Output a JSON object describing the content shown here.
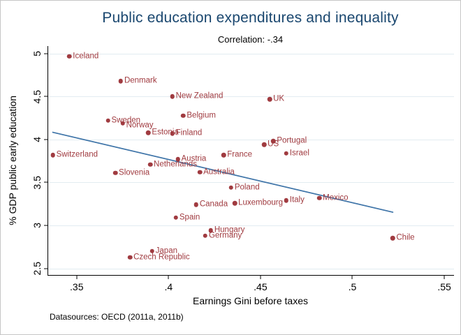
{
  "chart_data": {
    "type": "scatter",
    "title": "Public education expenditures and inequality",
    "subtitle": "Correlation: -.34",
    "xlabel": "Earnings Gini before taxes",
    "ylabel": "% GDP public early education",
    "note": "Datasources: OECD (2011a, 2011b)",
    "grid": true,
    "legend": "none",
    "x_view": [
      0.3345,
      0.5553
    ],
    "y_view": [
      2.423,
      5.089
    ],
    "xticks": [
      {
        "v": 0.35,
        "label": ".35"
      },
      {
        "v": 0.4,
        "label": ".4"
      },
      {
        "v": 0.45,
        "label": ".45"
      },
      {
        "v": 0.5,
        "label": ".5"
      },
      {
        "v": 0.55,
        "label": ".55"
      }
    ],
    "yticks": [
      {
        "v": 2.5,
        "label": "2.5"
      },
      {
        "v": 3.0,
        "label": "3"
      },
      {
        "v": 3.5,
        "label": "3.5"
      },
      {
        "v": 4.0,
        "label": "4"
      },
      {
        "v": 4.5,
        "label": "4.5"
      },
      {
        "v": 5.0,
        "label": "5"
      }
    ],
    "trend_line": {
      "x": [
        0.337,
        0.522
      ],
      "y": [
        4.085,
        3.154
      ]
    },
    "points": [
      {
        "label": "Iceland",
        "x": 0.346,
        "y": 4.97
      },
      {
        "label": "Denmark",
        "x": 0.374,
        "y": 4.68
      },
      {
        "label": "New Zealand",
        "x": 0.402,
        "y": 4.5
      },
      {
        "label": "UK",
        "x": 0.455,
        "y": 4.47
      },
      {
        "label": "Belgium",
        "x": 0.408,
        "y": 4.28
      },
      {
        "label": "Sweden",
        "x": 0.367,
        "y": 4.22
      },
      {
        "label": "Norway",
        "x": 0.375,
        "y": 4.19,
        "label_dy": 3
      },
      {
        "label": "Estonia",
        "x": 0.389,
        "y": 4.08
      },
      {
        "label": "Finland",
        "x": 0.402,
        "y": 4.07
      },
      {
        "label": "Portugal",
        "x": 0.457,
        "y": 3.98
      },
      {
        "label": "US",
        "x": 0.452,
        "y": 3.94
      },
      {
        "label": "Israel",
        "x": 0.464,
        "y": 3.84
      },
      {
        "label": "France",
        "x": 0.43,
        "y": 3.82
      },
      {
        "label": "Switzerland",
        "x": 0.337,
        "y": 3.82
      },
      {
        "label": "Austria",
        "x": 0.405,
        "y": 3.77
      },
      {
        "label": "Netherlands",
        "x": 0.39,
        "y": 3.71
      },
      {
        "label": "Australia",
        "x": 0.417,
        "y": 3.62
      },
      {
        "label": "Slovenia",
        "x": 0.371,
        "y": 3.61
      },
      {
        "label": "Poland",
        "x": 0.434,
        "y": 3.44
      },
      {
        "label": "Mexico",
        "x": 0.482,
        "y": 3.32
      },
      {
        "label": "Italy",
        "x": 0.464,
        "y": 3.29
      },
      {
        "label": "Luxembourg",
        "x": 0.436,
        "y": 3.26
      },
      {
        "label": "Canada",
        "x": 0.415,
        "y": 3.24
      },
      {
        "label": "Spain",
        "x": 0.404,
        "y": 3.09
      },
      {
        "label": "Hungary",
        "x": 0.423,
        "y": 2.94
      },
      {
        "label": "Germany",
        "x": 0.42,
        "y": 2.88
      },
      {
        "label": "Chile",
        "x": 0.522,
        "y": 2.85
      },
      {
        "label": "Japan",
        "x": 0.391,
        "y": 2.7
      },
      {
        "label": "Czech Republic",
        "x": 0.379,
        "y": 2.63
      }
    ],
    "colors": {
      "marker": "#A03B40",
      "marker_label": "#A03B40",
      "title": "#1A476F",
      "trend_line": "#3E74A8",
      "grid_line": "#E2ECF1",
      "axis": "#000000",
      "text": "#000000"
    }
  }
}
